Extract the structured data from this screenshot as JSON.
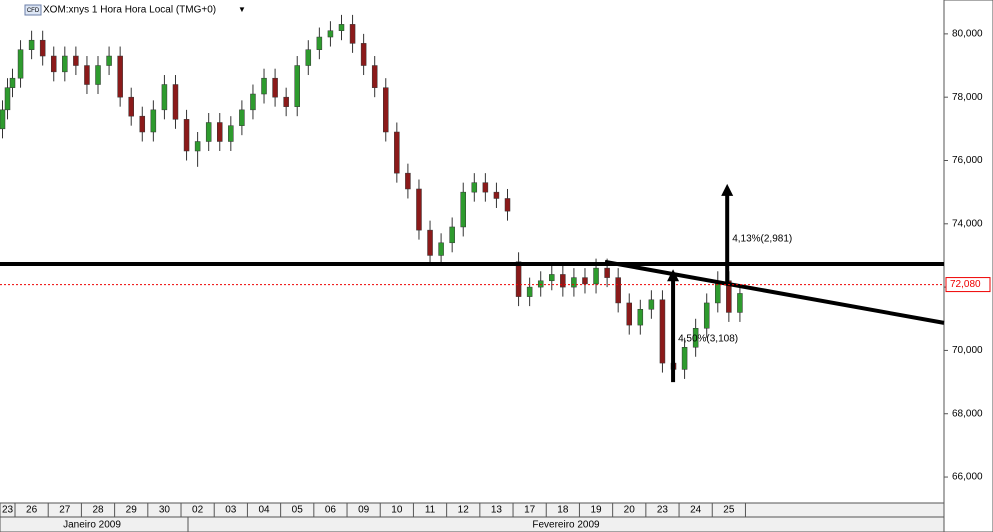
{
  "chart_data": {
    "type": "candlestick",
    "title": "XOM:xnys 1 Hora Hora Local (TMG+0)",
    "icon_label": "CFD",
    "categories": [
      "23",
      "26",
      "27",
      "28",
      "29",
      "30",
      "02",
      "03",
      "04",
      "05",
      "06",
      "09",
      "10",
      "11",
      "12",
      "13",
      "17",
      "18",
      "19",
      "20",
      "23",
      "24",
      "25"
    ],
    "months": [
      "Janeiro 2009",
      "Fevereiro 2009"
    ],
    "open": [
      [
        77.0,
        77.6,
        78.3
      ],
      [
        78.6,
        79.5,
        79.8
      ],
      [
        79.3,
        78.8,
        79.3
      ],
      [
        79.0,
        78.4,
        79.0
      ],
      [
        79.3,
        78.0,
        77.4
      ],
      [
        76.9,
        77.6,
        78.4
      ],
      [
        77.3,
        76.3,
        76.6
      ],
      [
        77.2,
        76.6,
        77.1
      ],
      [
        77.6,
        78.1,
        78.6
      ],
      [
        78.0,
        77.7,
        79.0
      ],
      [
        79.5,
        79.9,
        80.1
      ],
      [
        80.3,
        79.7,
        79.0
      ],
      [
        78.3,
        76.9,
        75.6
      ],
      [
        75.1,
        73.8,
        73.0
      ],
      [
        73.4,
        73.9,
        75.0
      ],
      [
        75.3,
        75.0,
        74.8
      ],
      [
        72.8,
        71.7,
        72.0
      ],
      [
        72.2,
        72.4,
        72.0
      ],
      [
        72.3,
        72.1,
        72.6
      ],
      [
        72.3,
        71.5,
        70.8
      ],
      [
        71.3,
        71.6,
        69.6
      ],
      [
        69.4,
        70.1,
        70.7
      ],
      [
        71.5,
        72.2,
        71.2
      ]
    ],
    "high": [
      [
        77.9,
        78.6,
        78.9
      ],
      [
        79.8,
        80.1,
        80.1
      ],
      [
        79.6,
        79.6,
        79.6
      ],
      [
        79.3,
        79.3,
        79.6
      ],
      [
        79.6,
        78.3,
        77.7
      ],
      [
        77.9,
        78.7,
        78.7
      ],
      [
        77.6,
        76.9,
        77.5
      ],
      [
        77.5,
        77.4,
        77.9
      ],
      [
        78.4,
        78.9,
        78.9
      ],
      [
        78.3,
        79.3,
        79.8
      ],
      [
        80.2,
        80.4,
        80.6
      ],
      [
        80.6,
        80.0,
        79.3
      ],
      [
        78.6,
        77.2,
        75.9
      ],
      [
        75.4,
        74.1,
        73.7
      ],
      [
        74.2,
        75.3,
        75.6
      ],
      [
        75.6,
        75.3,
        75.1
      ],
      [
        73.1,
        72.3,
        72.5
      ],
      [
        72.7,
        72.7,
        72.6
      ],
      [
        72.6,
        72.9,
        72.9
      ],
      [
        72.6,
        71.8,
        71.6
      ],
      [
        71.9,
        71.9,
        69.9
      ],
      [
        70.4,
        71.0,
        71.8
      ],
      [
        72.5,
        72.5,
        72.1
      ]
    ],
    "low": [
      [
        76.7,
        77.3,
        78.0
      ],
      [
        78.3,
        79.2,
        79.0
      ],
      [
        78.5,
        78.5,
        78.7
      ],
      [
        78.1,
        78.1,
        78.7
      ],
      [
        77.7,
        77.1,
        76.6
      ],
      [
        76.6,
        77.3,
        77.0
      ],
      [
        76.0,
        75.8,
        76.3
      ],
      [
        76.3,
        76.3,
        76.8
      ],
      [
        77.3,
        77.8,
        77.7
      ],
      [
        77.4,
        77.4,
        78.7
      ],
      [
        79.2,
        79.6,
        79.8
      ],
      [
        79.4,
        78.7,
        78.0
      ],
      [
        76.6,
        75.3,
        74.8
      ],
      [
        73.5,
        72.7,
        72.7
      ],
      [
        73.1,
        73.6,
        74.7
      ],
      [
        74.7,
        74.5,
        74.1
      ],
      [
        71.4,
        71.4,
        71.7
      ],
      [
        71.9,
        71.7,
        71.7
      ],
      [
        71.8,
        71.8,
        72.0
      ],
      [
        71.2,
        70.5,
        70.5
      ],
      [
        71.0,
        69.3,
        69.1
      ],
      [
        69.1,
        69.8,
        70.4
      ],
      [
        71.2,
        70.9,
        70.9
      ]
    ],
    "close": [
      [
        77.6,
        78.3,
        78.6
      ],
      [
        79.5,
        79.8,
        79.3
      ],
      [
        78.8,
        79.3,
        79.0
      ],
      [
        78.4,
        79.0,
        79.3
      ],
      [
        78.0,
        77.4,
        76.9
      ],
      [
        77.6,
        78.4,
        77.3
      ],
      [
        76.3,
        76.6,
        77.2
      ],
      [
        76.6,
        77.1,
        77.6
      ],
      [
        78.1,
        78.6,
        78.0
      ],
      [
        77.7,
        79.0,
        79.5
      ],
      [
        79.9,
        80.1,
        80.3
      ],
      [
        79.7,
        79.0,
        78.3
      ],
      [
        76.9,
        75.6,
        75.1
      ],
      [
        73.8,
        73.0,
        73.4
      ],
      [
        73.9,
        75.0,
        75.3
      ],
      [
        75.0,
        74.8,
        74.4
      ],
      [
        71.7,
        72.0,
        72.2
      ],
      [
        72.4,
        72.0,
        72.3
      ],
      [
        72.1,
        72.6,
        72.3
      ],
      [
        71.5,
        70.8,
        71.3
      ],
      [
        71.6,
        69.6,
        69.4
      ],
      [
        70.1,
        70.7,
        71.5
      ],
      [
        72.2,
        71.2,
        71.8
      ]
    ],
    "up_color": "#2e9b2e",
    "down_color": "#8b1a1a",
    "xlim": [
      0.548,
      28.98
    ],
    "ylim": [
      65.18,
      81.07
    ],
    "yticks": [
      {
        "value": 66,
        "label": "66,000"
      },
      {
        "value": 68,
        "label": "68,000"
      },
      {
        "value": 70,
        "label": "70,000"
      },
      {
        "value": 72,
        "label": "72,000"
      },
      {
        "value": 74,
        "label": "74,000"
      },
      {
        "value": 76,
        "label": "76,000"
      },
      {
        "value": 78,
        "label": "78,000"
      },
      {
        "value": 80,
        "label": "80,000"
      }
    ],
    "last_price": {
      "value": 72.08,
      "label": "72,080"
    },
    "horizontal_line": 72.73,
    "trend_line": {
      "x": [
        18.77,
        28.98
      ],
      "y": [
        72.8,
        70.87
      ]
    },
    "arrows": [
      {
        "x": 20.82,
        "from": 69.0,
        "to": 72.5,
        "label": "4,50%(3,108)"
      },
      {
        "x": 22.45,
        "from": 72.1,
        "to": 75.2,
        "label": "4,13%(2,981)"
      }
    ]
  }
}
